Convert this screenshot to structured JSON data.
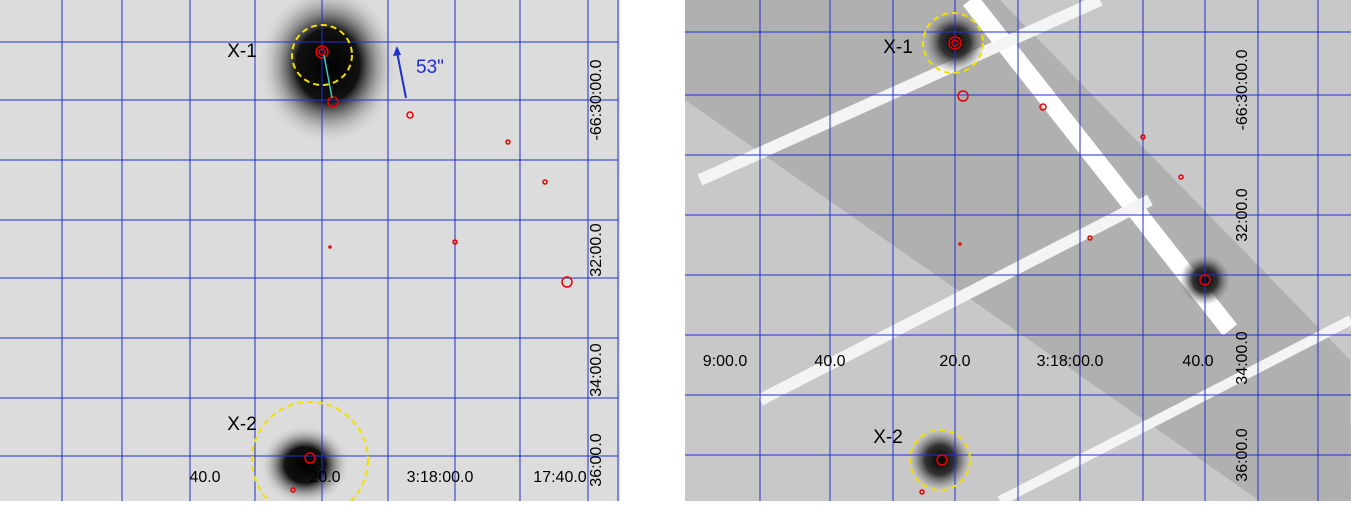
{
  "panels": [
    {
      "sources": [
        {
          "label": "X-1"
        },
        {
          "label": "X-2"
        }
      ],
      "annotation": "53\"",
      "ra_labels": [
        "40.0",
        "20.0",
        "3:18:00.0",
        "17:40.0"
      ],
      "dec_labels": [
        "-66:30:00.0",
        "32:00.0",
        "34:00.0",
        "36:00.0"
      ]
    },
    {
      "sources": [
        {
          "label": "X-1"
        },
        {
          "label": "X-2"
        }
      ],
      "ra_labels": [
        "9:00.0",
        "40.0",
        "20.0",
        "3:18:00.0",
        "40.0"
      ],
      "dec_labels": [
        "-66:30:00.0",
        "32:00.0",
        "34:00.0",
        "36:00.0"
      ]
    }
  ]
}
